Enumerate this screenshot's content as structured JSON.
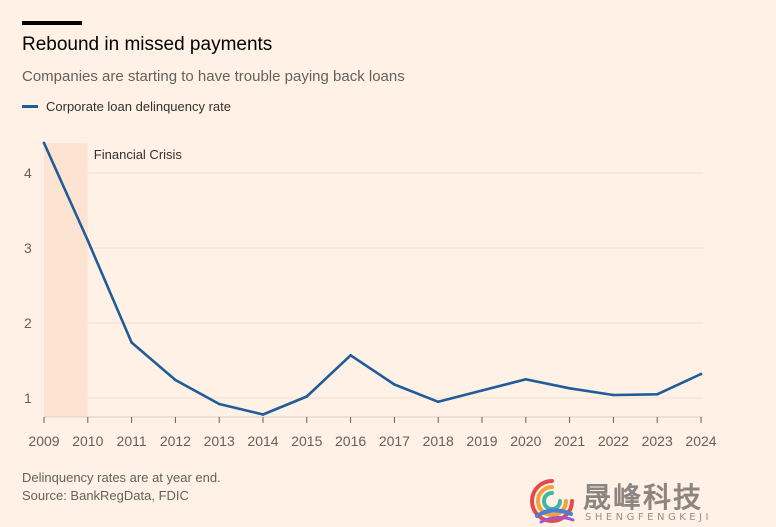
{
  "header": {
    "title": "Rebound in missed payments",
    "subtitle": "Companies are starting to have trouble paying back loans"
  },
  "colors": {
    "background": "#fff1e5",
    "series": "#1f5c99",
    "shade": "#fde4d2",
    "grid": "#f0e0d3",
    "axis": "#66605c"
  },
  "chart_data": {
    "type": "line",
    "title": "Rebound in missed payments",
    "subtitle": "Companies are starting to have trouble paying back loans",
    "xlabel": "",
    "ylabel": "",
    "x": [
      2009,
      2010,
      2011,
      2012,
      2013,
      2014,
      2015,
      2016,
      2017,
      2018,
      2019,
      2020,
      2021,
      2022,
      2023,
      2024
    ],
    "series": [
      {
        "name": "Corporate loan delinquency rate",
        "color": "#1f5c99",
        "values": [
          4.4,
          3.1,
          1.74,
          1.24,
          0.92,
          0.78,
          1.02,
          1.57,
          1.18,
          0.95,
          1.1,
          1.25,
          1.13,
          1.04,
          1.05,
          1.32
        ]
      }
    ],
    "x_ticks": [
      "2009",
      "2010",
      "2011",
      "2012",
      "2013",
      "2014",
      "2015",
      "2016",
      "2017",
      "2018",
      "2019",
      "2020",
      "2021",
      "2022",
      "2023",
      "2024"
    ],
    "y_ticks": [
      1,
      2,
      3,
      4
    ],
    "xlim": [
      2009,
      2024
    ],
    "ylim": [
      0.8,
      4.4
    ],
    "grid": true,
    "legend_position": "top-left",
    "shaded_region": {
      "label": "Financial Crisis",
      "x_start": 2009,
      "x_end": 2010
    }
  },
  "footer": {
    "note": "Delinquency rates are at year end.",
    "source": "Source: BankRegData, FDIC"
  },
  "watermark": {
    "cn": "晟峰科技",
    "en": "SHENGFENGKEJI"
  }
}
